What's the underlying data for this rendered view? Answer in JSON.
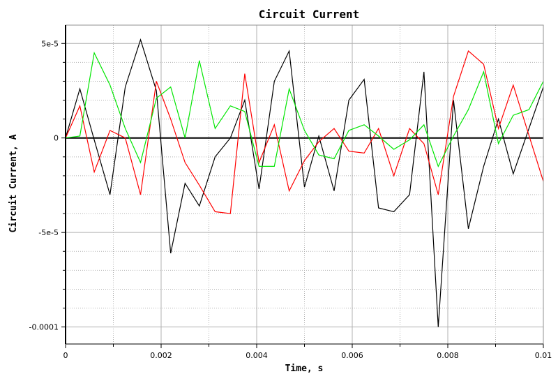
{
  "chart_data": {
    "type": "line",
    "title": "Circuit Current",
    "xlabel": "Time, s",
    "ylabel": "Circuit Current, A",
    "xlim": [
      0,
      0.01
    ],
    "ylim": [
      -0.000109,
      5.97e-05
    ],
    "grid": true,
    "legend": "none",
    "x_ticks": [
      0,
      0.002,
      0.004,
      0.006,
      0.008,
      0.01
    ],
    "x_tick_labels": [
      "0",
      "0.002",
      "0.004",
      "0.006",
      "0.008",
      "0.01"
    ],
    "y_ticks": [
      5e-05,
      0,
      -5e-05,
      -0.0001
    ],
    "y_tick_labels": [
      "5e-5",
      "0",
      "-5e-5",
      "-0.0001"
    ],
    "colors": {
      "black": "#000000",
      "red": "#ff0000",
      "green": "#00e600",
      "grid": "#b0b0b0",
      "zero_line": "#000000"
    },
    "series": [
      {
        "color": "black",
        "points": [
          [
            0,
            0
          ],
          [
            0.0003,
            2.6e-05
          ],
          [
            0.0006,
            -1e-06
          ],
          [
            0.00093,
            -3e-05
          ],
          [
            0.00125,
            2.7e-05
          ],
          [
            0.00157,
            5.2e-05
          ],
          [
            0.0019,
            2.5e-05
          ],
          [
            0.0022,
            -6.1e-05
          ],
          [
            0.0025,
            -2.4e-05
          ],
          [
            0.0028,
            -3.6e-05
          ],
          [
            0.00313,
            -1e-05
          ],
          [
            0.00345,
            0
          ],
          [
            0.00375,
            2e-05
          ],
          [
            0.00405,
            -2.7e-05
          ],
          [
            0.00437,
            3e-05
          ],
          [
            0.00468,
            4.6e-05
          ],
          [
            0.005,
            -2.6e-05
          ],
          [
            0.0053,
            1e-06
          ],
          [
            0.00562,
            -2.8e-05
          ],
          [
            0.00593,
            2e-05
          ],
          [
            0.00625,
            3.1e-05
          ],
          [
            0.00655,
            -3.7e-05
          ],
          [
            0.00687,
            -3.9e-05
          ],
          [
            0.0072,
            -3e-05
          ],
          [
            0.0075,
            3.5e-05
          ],
          [
            0.0078,
            -0.0001
          ],
          [
            0.00812,
            2e-05
          ],
          [
            0.00843,
            -4.8e-05
          ],
          [
            0.00875,
            -1.5e-05
          ],
          [
            0.00906,
            1e-05
          ],
          [
            0.00937,
            -1.9e-05
          ],
          [
            0.01,
            2.7e-05
          ]
        ]
      },
      {
        "color": "red",
        "points": [
          [
            0,
            0
          ],
          [
            0.0003,
            1.7e-05
          ],
          [
            0.0006,
            -1.8e-05
          ],
          [
            0.00093,
            4e-06
          ],
          [
            0.00125,
            0
          ],
          [
            0.00157,
            -3e-05
          ],
          [
            0.0019,
            3e-05
          ],
          [
            0.0022,
            1e-05
          ],
          [
            0.0025,
            -1.3e-05
          ],
          [
            0.0028,
            -2.5e-05
          ],
          [
            0.00313,
            -3.9e-05
          ],
          [
            0.00345,
            -4e-05
          ],
          [
            0.00375,
            3.4e-05
          ],
          [
            0.00405,
            -1.3e-05
          ],
          [
            0.00437,
            7e-06
          ],
          [
            0.00468,
            -2.8e-05
          ],
          [
            0.005,
            -1.2e-05
          ],
          [
            0.0053,
            -2e-06
          ],
          [
            0.00562,
            5e-06
          ],
          [
            0.00593,
            -7e-06
          ],
          [
            0.00625,
            -8e-06
          ],
          [
            0.00655,
            5e-06
          ],
          [
            0.00687,
            -2e-05
          ],
          [
            0.0072,
            5e-06
          ],
          [
            0.0075,
            -3e-06
          ],
          [
            0.0078,
            -3e-05
          ],
          [
            0.00812,
            2.2e-05
          ],
          [
            0.00843,
            4.6e-05
          ],
          [
            0.00875,
            3.9e-05
          ],
          [
            0.00906,
            5e-06
          ],
          [
            0.00937,
            2.8e-05
          ],
          [
            0.01,
            -2.3e-05
          ]
        ]
      },
      {
        "color": "green",
        "points": [
          [
            0,
            0
          ],
          [
            0.0003,
            1e-06
          ],
          [
            0.0006,
            4.5e-05
          ],
          [
            0.00093,
            2.8e-05
          ],
          [
            0.00125,
            5e-06
          ],
          [
            0.00157,
            -1.3e-05
          ],
          [
            0.0019,
            2.1e-05
          ],
          [
            0.0022,
            2.7e-05
          ],
          [
            0.0025,
            0
          ],
          [
            0.0028,
            4.1e-05
          ],
          [
            0.00313,
            5e-06
          ],
          [
            0.00345,
            1.7e-05
          ],
          [
            0.00375,
            1.4e-05
          ],
          [
            0.00405,
            -1.5e-05
          ],
          [
            0.00437,
            -1.5e-05
          ],
          [
            0.00468,
            2.6e-05
          ],
          [
            0.005,
            4e-06
          ],
          [
            0.0053,
            -9e-06
          ],
          [
            0.00562,
            -1.1e-05
          ],
          [
            0.00593,
            4e-06
          ],
          [
            0.00625,
            7e-06
          ],
          [
            0.00655,
            1e-06
          ],
          [
            0.00687,
            -6e-06
          ],
          [
            0.0072,
            -1e-06
          ],
          [
            0.0075,
            7e-06
          ],
          [
            0.0078,
            -1.5e-05
          ],
          [
            0.00812,
            1e-06
          ],
          [
            0.00843,
            1.5e-05
          ],
          [
            0.00875,
            3.5e-05
          ],
          [
            0.00906,
            -3e-06
          ],
          [
            0.00937,
            1.2e-05
          ],
          [
            0.0097,
            1.5e-05
          ],
          [
            0.01,
            3e-05
          ]
        ]
      }
    ]
  }
}
